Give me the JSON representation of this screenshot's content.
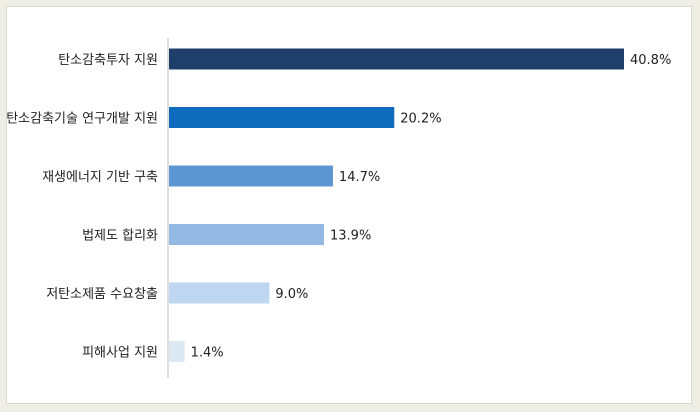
{
  "chart_data": {
    "type": "bar",
    "orientation": "horizontal",
    "categories": [
      "탄소감축투자 지원",
      "탄소감축기술 연구개발 지원",
      "재생에너지 기반 구축",
      "법제도 합리화",
      "저탄소제품 수요창출",
      "피해사업 지원"
    ],
    "values": [
      40.8,
      20.2,
      14.7,
      13.9,
      9.0,
      1.4
    ],
    "value_labels": [
      "40.8%",
      "20.2%",
      "14.7%",
      "13.9%",
      "9.0%",
      "1.4%"
    ],
    "colors": [
      "#1f3f6b",
      "#0f6cbd",
      "#5b96d2",
      "#93b9e3",
      "#bed6ef",
      "#dde8f5"
    ],
    "xlim": [
      0,
      40.8
    ],
    "grid": false,
    "legend": false
  }
}
